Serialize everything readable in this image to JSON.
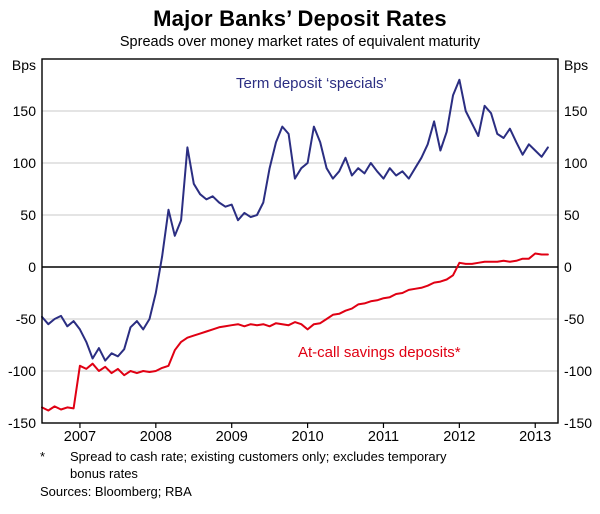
{
  "chart_data": {
    "type": "line",
    "title": "Major Banks’ Deposit Rates",
    "subtitle": "Spreads over money market rates of equivalent maturity",
    "ylabel_left": "Bps",
    "ylabel_right": "Bps",
    "ylim": [
      -150,
      200
    ],
    "y_ticks": [
      150,
      100,
      50,
      0,
      -50,
      -100,
      -150
    ],
    "xlim": [
      2006.5,
      2013.3
    ],
    "x_tick_labels": [
      "2007",
      "2008",
      "2009",
      "2010",
      "2011",
      "2012",
      "2013"
    ],
    "x_start": 2006.5,
    "x_step": 0.0833333,
    "grid": true,
    "legend_position": "inline-annotations",
    "series": [
      {
        "name": "Term deposit ‘specials’",
        "color": "#2b2e82",
        "values": [
          -48,
          -55,
          -50,
          -47,
          -57,
          -52,
          -60,
          -72,
          -88,
          -78,
          -90,
          -83,
          -86,
          -79,
          -58,
          -52,
          -60,
          -50,
          -25,
          10,
          55,
          30,
          45,
          115,
          80,
          70,
          65,
          68,
          62,
          58,
          60,
          45,
          52,
          48,
          50,
          62,
          95,
          120,
          135,
          128,
          85,
          95,
          100,
          135,
          120,
          95,
          85,
          92,
          105,
          88,
          95,
          90,
          100,
          92,
          85,
          95,
          88,
          92,
          85,
          95,
          105,
          118,
          140,
          112,
          130,
          165,
          180,
          150,
          138,
          126,
          155,
          148,
          128,
          124,
          133,
          120,
          108,
          118,
          112,
          106,
          115
        ]
      },
      {
        "name": "At-call savings deposits*",
        "color": "#e00013",
        "values": [
          -135,
          -138,
          -134,
          -137,
          -135,
          -136,
          -95,
          -98,
          -93,
          -100,
          -96,
          -102,
          -98,
          -104,
          -100,
          -102,
          -100,
          -101,
          -100,
          -97,
          -95,
          -80,
          -72,
          -68,
          -66,
          -64,
          -62,
          -60,
          -58,
          -57,
          -56,
          -55,
          -57,
          -55,
          -56,
          -55,
          -57,
          -54,
          -55,
          -56,
          -53,
          -55,
          -60,
          -55,
          -54,
          -50,
          -46,
          -45,
          -42,
          -40,
          -36,
          -35,
          -33,
          -32,
          -30,
          -29,
          -26,
          -25,
          -22,
          -21,
          -20,
          -18,
          -15,
          -14,
          -12,
          -8,
          4,
          3,
          3,
          4,
          5,
          5,
          5,
          6,
          5,
          6,
          8,
          8,
          13,
          12,
          12
        ]
      }
    ]
  },
  "annotations": {
    "term_deposits": {
      "label": "Term deposit ‘specials’"
    },
    "at_call": {
      "label": "At-call savings deposits*"
    }
  },
  "footnote": {
    "marker": "*",
    "text": "Spread to cash rate; existing customers only; excludes temporary bonus rates",
    "sources": "Sources: Bloomberg; RBA"
  }
}
